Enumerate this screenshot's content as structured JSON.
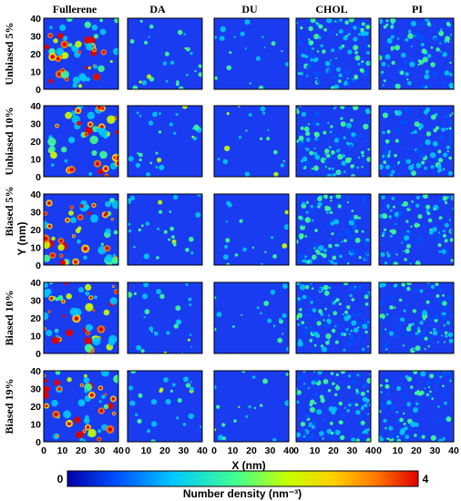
{
  "chart_data": {
    "type": "heatmap",
    "columns": [
      "Fullerene",
      "DA",
      "DU",
      "CHOL",
      "PI"
    ],
    "rows": [
      "Unbiased 5%",
      "Unbiased 10%",
      "Biased 5%",
      "Biased 10%",
      "Biased 19%"
    ],
    "xlabel": "X (nm)",
    "ylabel": "Y (nm)",
    "xlim": [
      0,
      40
    ],
    "ylim": [
      0,
      40
    ],
    "x_ticks": [
      "0",
      "10",
      "20",
      "30",
      "40"
    ],
    "y_ticks": [
      "0",
      "10",
      "20",
      "30",
      "40"
    ],
    "colorbar": {
      "label": "Number density (nm⁻³)",
      "min_label": "0",
      "max_label": "4",
      "range": [
        0,
        4
      ],
      "colormap": [
        "#0000a8",
        "#0050ff",
        "#00c8ff",
        "#40ff90",
        "#c8ff00",
        "#ffd000",
        "#ff7800",
        "#e00000"
      ]
    },
    "panel_fill": {
      "Fullerene": 0.25,
      "DA": 0.12,
      "DU": 0.08,
      "CHOL": 0.55,
      "PI": 0.45
    },
    "colors": {
      "background_blue": "#1a3cf0",
      "frame": "#000000"
    }
  }
}
